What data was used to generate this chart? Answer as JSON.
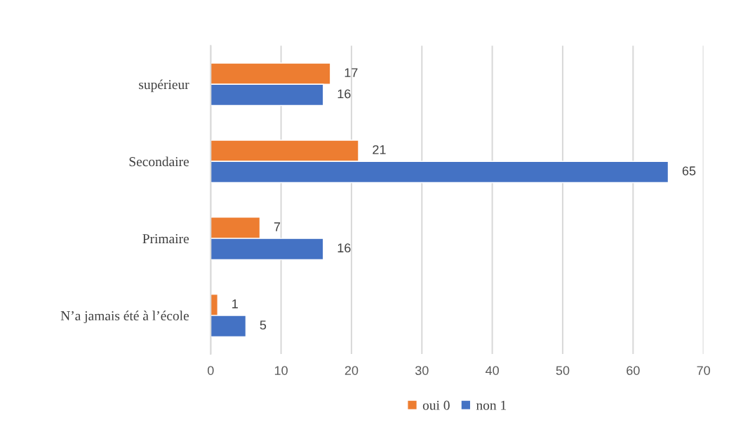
{
  "chart_data": {
    "type": "bar",
    "orientation": "horizontal",
    "categories": [
      "supérieur",
      "Secondaire",
      "Primaire",
      "N’a jamais été à l’école"
    ],
    "series": [
      {
        "name": "oui 0",
        "color": "#ed7d31",
        "values": [
          17,
          21,
          7,
          1
        ]
      },
      {
        "name": "non 1",
        "color": "#4472c4",
        "values": [
          16,
          65,
          16,
          5
        ]
      }
    ],
    "xlim": [
      0,
      70
    ],
    "xticks": [
      0,
      10,
      20,
      30,
      40,
      50,
      60,
      70
    ],
    "grid": "x",
    "legend": "bottom",
    "data_labels": true
  }
}
